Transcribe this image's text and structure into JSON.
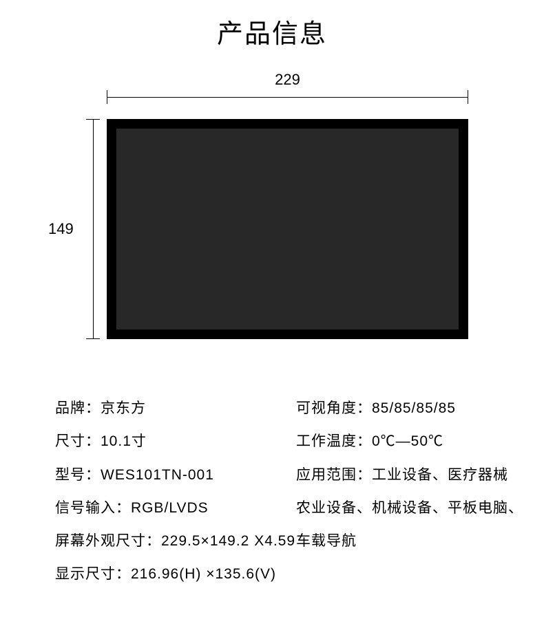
{
  "title": "产品信息",
  "dimensions": {
    "width_label": "229",
    "height_label": "149"
  },
  "panel": {
    "outer_color": "#000000",
    "inner_color": "#282828"
  },
  "specs": {
    "left": [
      {
        "label": "品牌：",
        "value": "京东方"
      },
      {
        "label": "尺寸：",
        "value": "10.1寸"
      },
      {
        "label": "型号：",
        "value": "WES101TN-001"
      },
      {
        "label": "信号输入：",
        "value": "RGB/LVDS"
      },
      {
        "label": "屏幕外观尺寸：",
        "value": "229.5×149.2 X4.59"
      },
      {
        "label": "显示尺寸：",
        "value": "216.96(H) ×135.6(V)"
      }
    ],
    "right": [
      {
        "label": "可视角度：",
        "value": "85/85/85/85"
      },
      {
        "label": "工作温度：",
        "value": "0℃—50℃"
      },
      {
        "label": "应用范围：",
        "value": "工业设备、医疗器械"
      },
      {
        "label": "",
        "value": "农业设备、机械设备、平板电脑、"
      },
      {
        "label": "",
        "value": "车载导航"
      },
      {
        "label": "",
        "value": ""
      }
    ]
  }
}
